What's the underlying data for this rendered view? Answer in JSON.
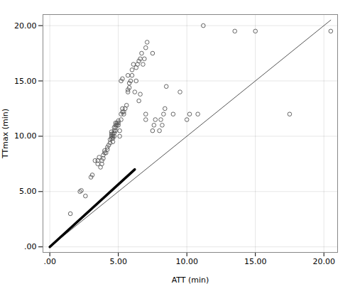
{
  "chart_data": {
    "type": "scatter",
    "xlabel": "ATT (min)",
    "ylabel": "TTmax (min)",
    "xlim": [
      -0.5,
      21.0
    ],
    "ylim": [
      -0.5,
      21.0
    ],
    "xticks": [
      {
        "value": 0.0,
        "label": ".00"
      },
      {
        "value": 5.0,
        "label": "5.00"
      },
      {
        "value": 10.0,
        "label": "10.00"
      },
      {
        "value": 15.0,
        "label": "15.00"
      },
      {
        "value": 20.0,
        "label": "20.00"
      }
    ],
    "yticks": [
      {
        "value": 0.0,
        "label": ".00"
      },
      {
        "value": 5.0,
        "label": "5.00"
      },
      {
        "value": 10.0,
        "label": "10.00"
      },
      {
        "value": 15.0,
        "label": "15.00"
      },
      {
        "value": 20.0,
        "label": "20.00"
      }
    ],
    "grid": true,
    "series": [
      {
        "type": "line",
        "color": "#555555",
        "line_style": "solid",
        "x": [
          0.0,
          20.5
        ],
        "y": [
          0.0,
          20.5
        ]
      },
      {
        "type": "line",
        "color": "#000000",
        "line_style": "solid",
        "x": [
          0.0,
          6.2
        ],
        "y": [
          0.0,
          7.0
        ]
      },
      {
        "type": "scatter",
        "color": "#555555",
        "marker": "circle_open",
        "x": [
          1.5,
          2.2,
          2.3,
          2.6,
          3.0,
          3.1,
          3.3,
          3.5,
          3.5,
          3.6,
          3.7,
          3.8,
          3.8,
          3.9,
          3.9,
          4.0,
          4.0,
          4.1,
          4.2,
          4.2,
          4.3,
          4.4,
          4.4,
          4.5,
          4.5,
          4.5,
          4.5,
          4.6,
          4.6,
          4.6,
          4.6,
          4.7,
          4.7,
          4.7,
          4.7,
          4.8,
          4.8,
          4.8,
          4.8,
          4.9,
          4.9,
          5.0,
          5.0,
          5.0,
          5.1,
          5.1,
          5.2,
          5.2,
          5.3,
          5.3,
          5.4,
          5.4,
          5.5,
          5.6,
          5.7,
          5.7,
          5.8,
          5.8,
          5.9,
          6.0,
          6.0,
          6.1,
          6.2,
          6.3,
          6.3,
          6.4,
          6.5,
          6.6,
          6.7,
          6.8,
          6.9,
          7.0,
          7.1,
          7.5,
          5.2,
          5.3,
          5.7,
          6.5,
          6.6,
          7.0,
          7.0,
          7.5,
          7.6,
          7.7,
          8.0,
          8.1,
          8.2,
          8.3,
          8.4,
          8.5,
          9.0,
          9.5,
          10.0,
          10.2,
          10.8,
          11.2,
          13.5,
          15.0,
          17.5,
          20.5
        ],
        "y": [
          3.0,
          5.0,
          5.1,
          4.6,
          6.3,
          6.5,
          7.8,
          7.5,
          7.8,
          8.1,
          7.2,
          7.5,
          7.8,
          8.0,
          8.3,
          8.5,
          8.7,
          8.5,
          8.8,
          9.0,
          9.2,
          9.4,
          9.7,
          9.8,
          10.0,
          10.2,
          10.4,
          9.5,
          9.8,
          10.0,
          10.2,
          10.0,
          10.3,
          10.5,
          10.8,
          10.5,
          10.8,
          11.0,
          11.2,
          11.0,
          11.2,
          11.0,
          11.2,
          11.4,
          10.0,
          10.5,
          11.5,
          12.0,
          12.2,
          12.5,
          12.0,
          12.2,
          12.5,
          12.8,
          14.0,
          14.2,
          14.4,
          14.8,
          15.0,
          15.5,
          16.0,
          16.5,
          14.0,
          15.0,
          16.2,
          16.5,
          16.8,
          17.0,
          17.5,
          16.5,
          17.0,
          18.0,
          18.5,
          17.5,
          15.0,
          15.2,
          15.5,
          13.2,
          13.8,
          11.5,
          12.0,
          10.5,
          11.0,
          11.5,
          10.5,
          11.5,
          11.0,
          12.0,
          12.5,
          14.5,
          12.0,
          14.0,
          11.5,
          12.0,
          12.0,
          20.0,
          19.5,
          19.5,
          12.0,
          19.5
        ]
      }
    ]
  }
}
